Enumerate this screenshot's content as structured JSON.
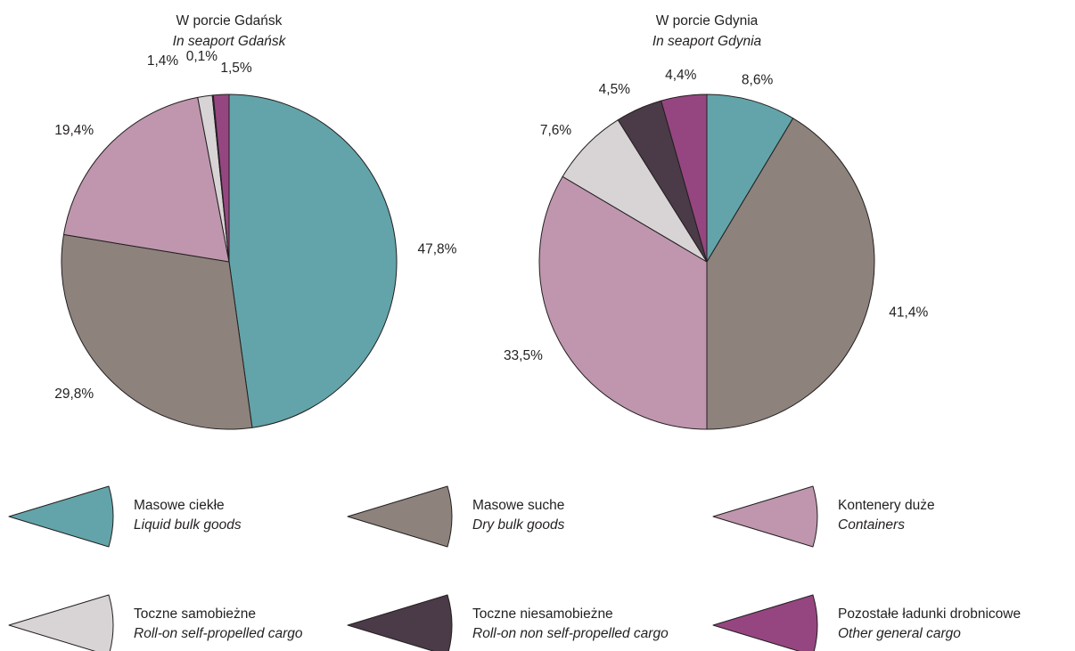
{
  "chart_data": [
    {
      "type": "pie",
      "title": "W porcie Gdańsk",
      "subtitle": "In seaport Gdańsk",
      "slices": [
        {
          "category": "Masowe ciekłe",
          "value": 47.8,
          "label": "47,8%"
        },
        {
          "category": "Masowe suche",
          "value": 29.8,
          "label": "29,8%"
        },
        {
          "category": "Kontenery duże",
          "value": 19.4,
          "label": "19,4%"
        },
        {
          "category": "Toczne samobieżne",
          "value": 1.4,
          "label": "1,4%"
        },
        {
          "category": "Toczne niesamobieżne",
          "value": 0.1,
          "label": "0,1%"
        },
        {
          "category": "Pozostałe ładunki drobnicowe",
          "value": 1.5,
          "label": "1,5%"
        }
      ]
    },
    {
      "type": "pie",
      "title": "W porcie Gdynia",
      "subtitle": "In seaport Gdynia",
      "slices": [
        {
          "category": "Masowe ciekłe",
          "value": 8.6,
          "label": "8,6%"
        },
        {
          "category": "Masowe suche",
          "value": 41.4,
          "label": "41,4%"
        },
        {
          "category": "Kontenery duże",
          "value": 33.5,
          "label": "33,5%"
        },
        {
          "category": "Toczne samobieżne",
          "value": 7.6,
          "label": "7,6%"
        },
        {
          "category": "Toczne niesamobieżne",
          "value": 4.5,
          "label": "4,5%"
        },
        {
          "category": "Pozostałe ładunki drobnicowe",
          "value": 4.4,
          "label": "4,4%"
        }
      ]
    }
  ],
  "legend": [
    {
      "category": "Masowe ciekłe",
      "label_pl": "Masowe ciekłe",
      "label_en": "Liquid bulk goods",
      "color": "#62a4a9"
    },
    {
      "category": "Masowe suche",
      "label_pl": "Masowe suche",
      "label_en": "Dry bulk goods",
      "color": "#8d827c"
    },
    {
      "category": "Kontenery duże",
      "label_pl": "Kontenery duże",
      "label_en": "Containers",
      "color": "#bf96ae"
    },
    {
      "category": "Toczne samobieżne",
      "label_pl": "Toczne samobieżne",
      "label_en": "Roll-on self-propelled cargo",
      "color": "#d8d4d5"
    },
    {
      "category": "Toczne niesamobieżne",
      "label_pl": "Toczne niesamobieżne",
      "label_en": "Roll-on non self-propelled cargo",
      "color": "#4b3a47"
    },
    {
      "category": "Pozostałe ładunki drobnicowe",
      "label_pl": "Pozostałe ładunki drobnicowe",
      "label_en": "Other general cargo",
      "color": "#954680"
    }
  ]
}
